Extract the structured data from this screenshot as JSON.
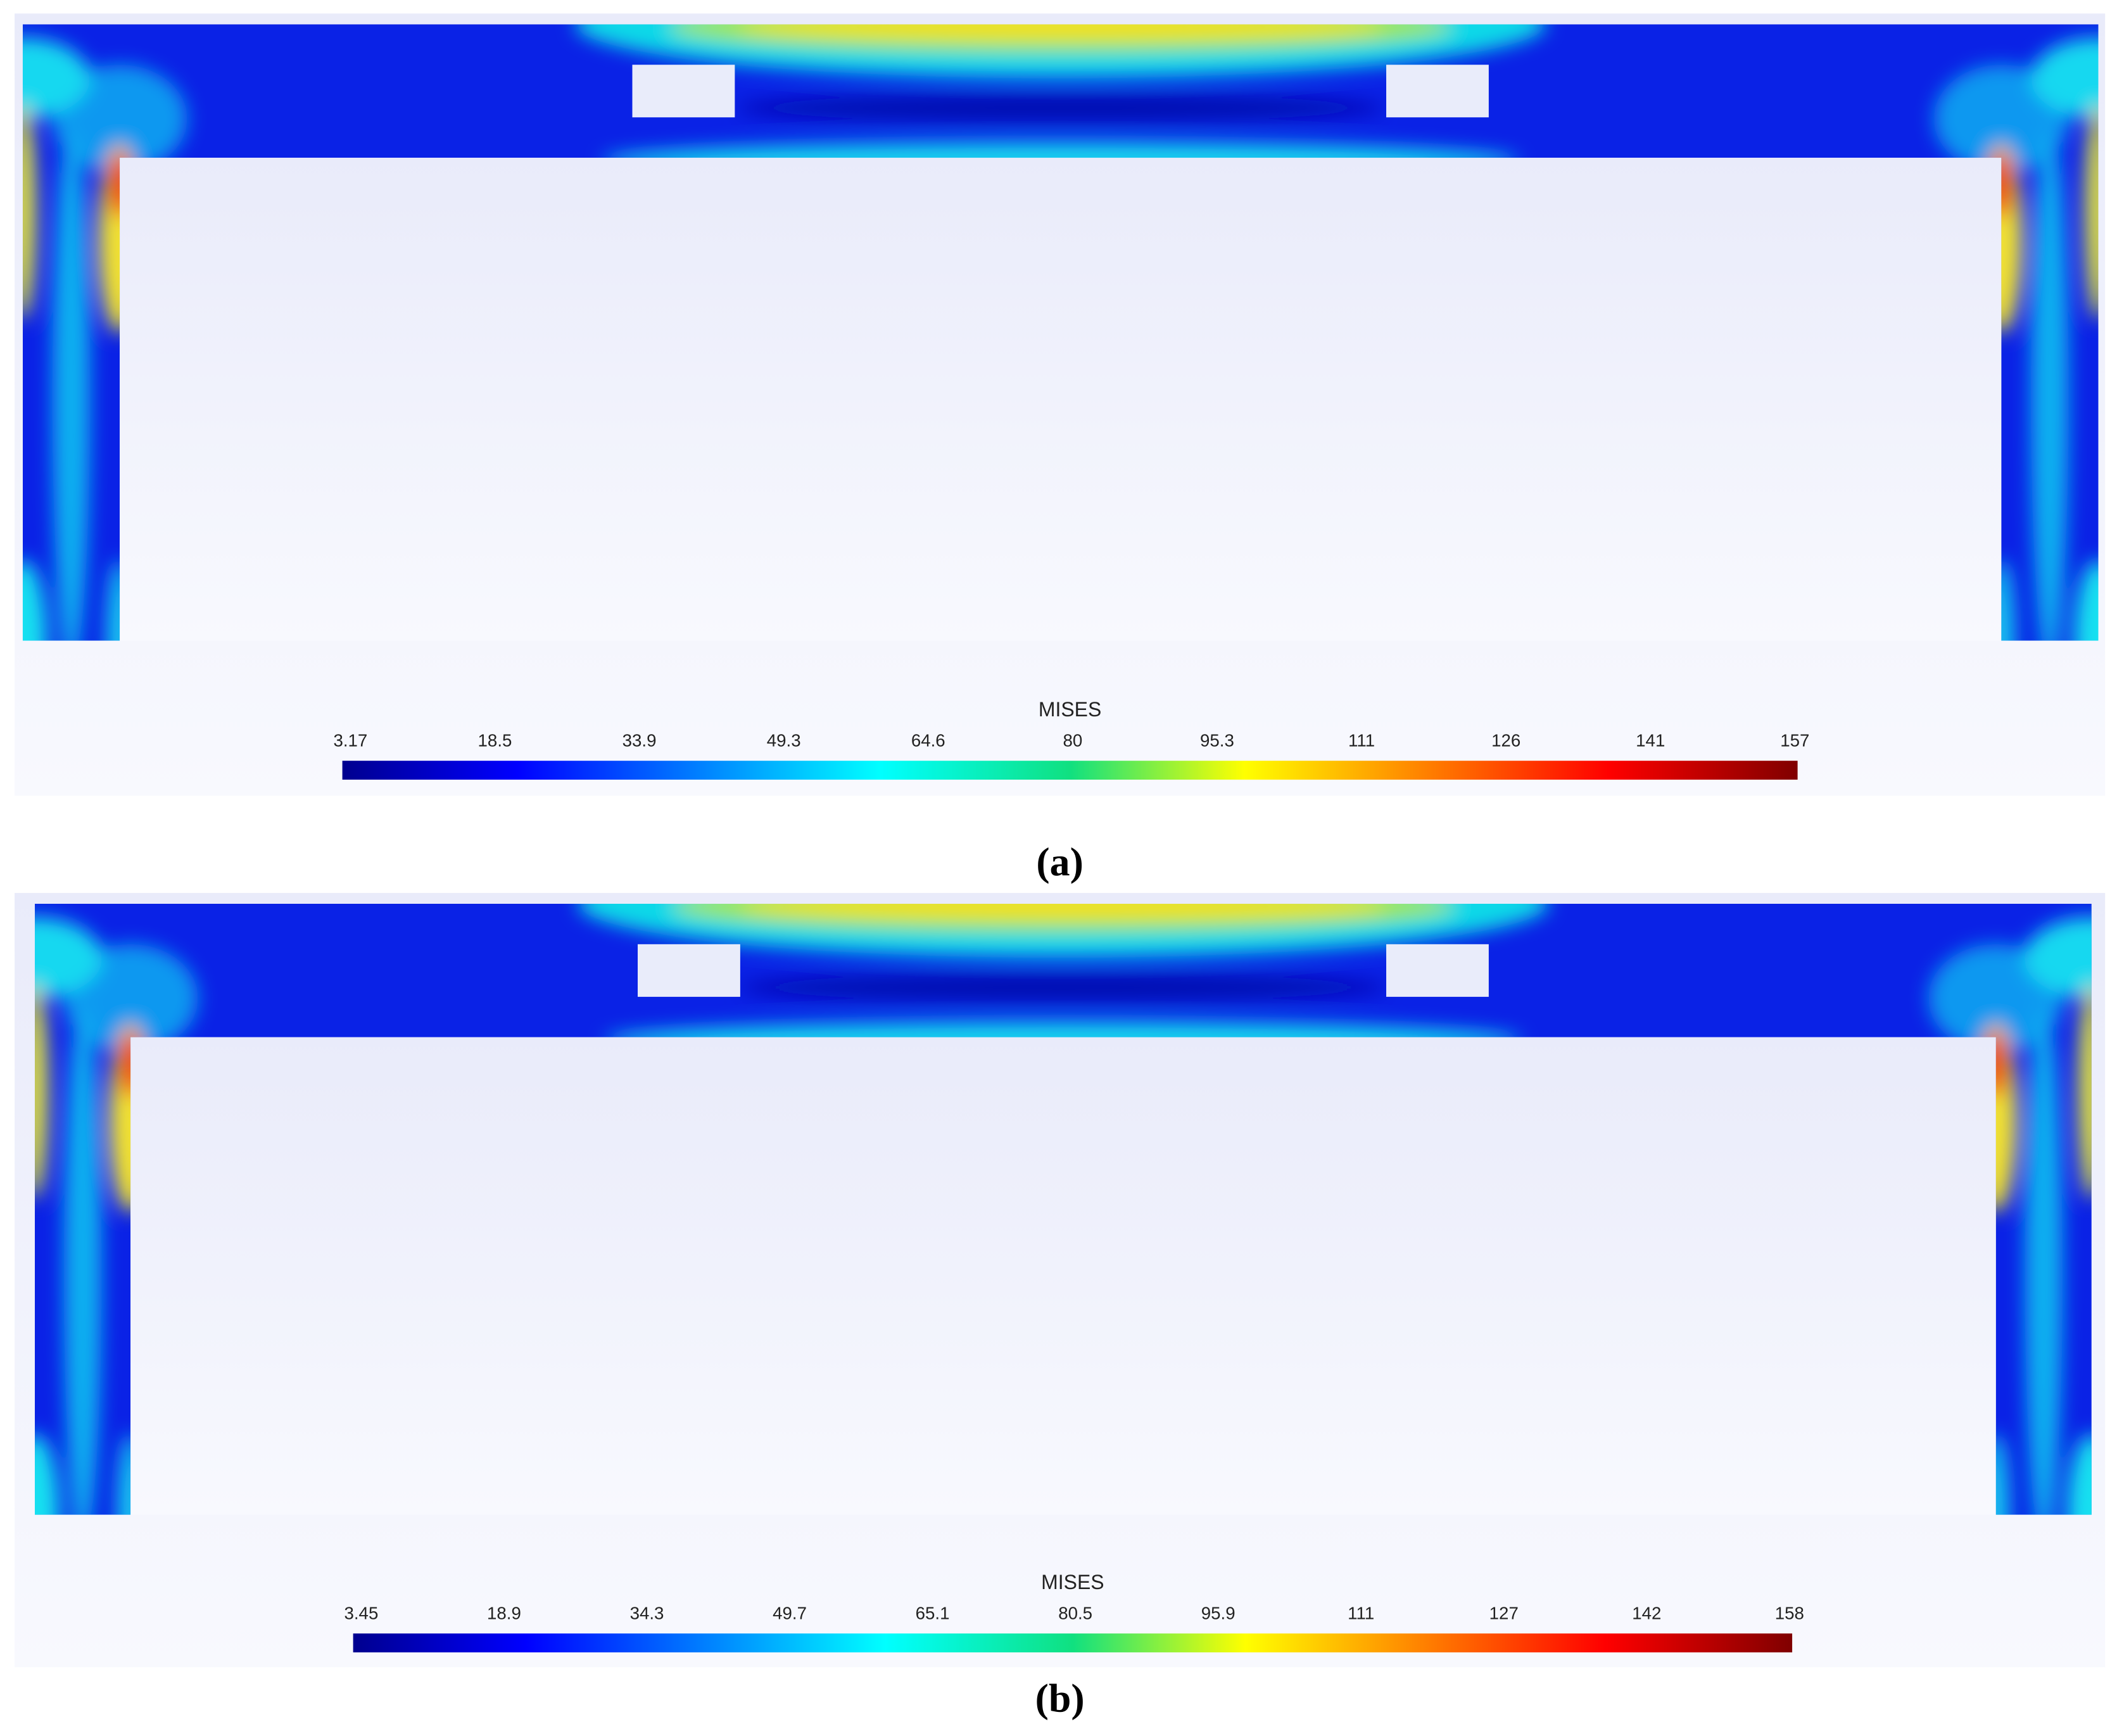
{
  "panels": [
    {
      "legend_title": "MISES",
      "legend_ticks": [
        "3.17",
        "18.5",
        "33.9",
        "49.3",
        "64.6",
        "80",
        "95.3",
        "111",
        "126",
        "141",
        "157"
      ],
      "caption": "(a)"
    },
    {
      "legend_title": "MISES",
      "legend_ticks": [
        "3.45",
        "18.9",
        "34.3",
        "49.7",
        "65.1",
        "80.5",
        "95.9",
        "111",
        "127",
        "142",
        "158"
      ],
      "caption": "(b)"
    }
  ]
}
